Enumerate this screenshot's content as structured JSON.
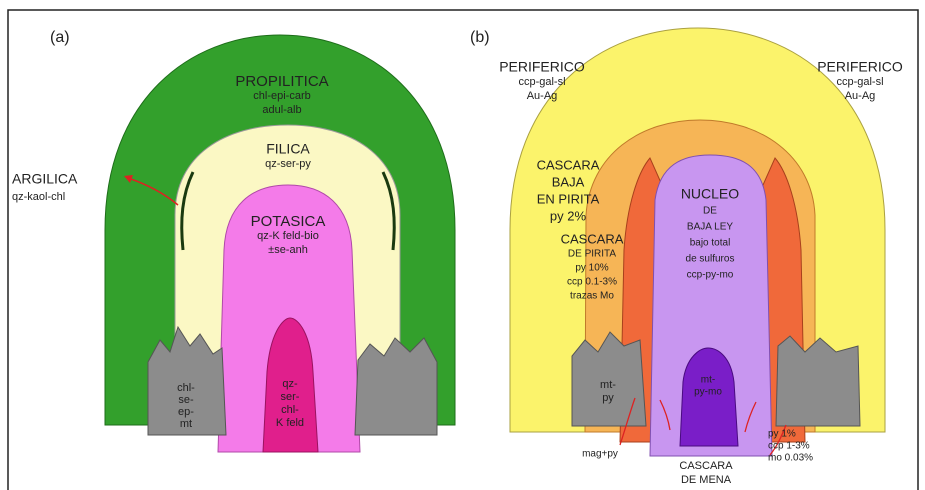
{
  "panel_a": {
    "label": "(a)",
    "propilitica": [
      "PROPILITICA",
      "chl-epi-carb",
      "adul-alb"
    ],
    "filica": [
      "FILICA",
      "qz-ser-py"
    ],
    "argilica": [
      "ARGILICA",
      "qz-kaol-chl"
    ],
    "potasica": [
      "POTASICA",
      "qz-K feld-bio",
      "±se-anh"
    ],
    "core": [
      "qz-",
      "ser-",
      "chl-",
      "K feld"
    ],
    "margin": [
      "chl-",
      "se-",
      "ep-",
      "mt"
    ]
  },
  "panel_b": {
    "label": "(b)",
    "periferico_left": [
      "PERIFERICO",
      "ccp-gal-sl",
      "Au-Ag"
    ],
    "periferico_right": [
      "PERIFERICO",
      "ccp-gal-sl",
      "Au-Ag"
    ],
    "cascara_baja": [
      "CASCARA",
      "BAJA",
      "EN PIRITA",
      "py 2%"
    ],
    "cascara_pirita": [
      "CASCARA",
      "DE PIRITA",
      "py 10%",
      "ccp 0.1-3%",
      "trazas Mo"
    ],
    "nucleo": [
      "NUCLEO",
      "DE",
      "BAJA LEY",
      "bajo total",
      "de sulfuros",
      "ccp-py-mo"
    ],
    "core": [
      "mt-",
      "py-mo"
    ],
    "margin": [
      "mt-",
      "py"
    ],
    "mag_py": [
      "mag+py"
    ],
    "cascara_mena": [
      "CASCARA",
      "DE MENA"
    ],
    "grade": [
      "py 1%",
      "ccp 1-3%",
      "mo 0.03%"
    ]
  }
}
